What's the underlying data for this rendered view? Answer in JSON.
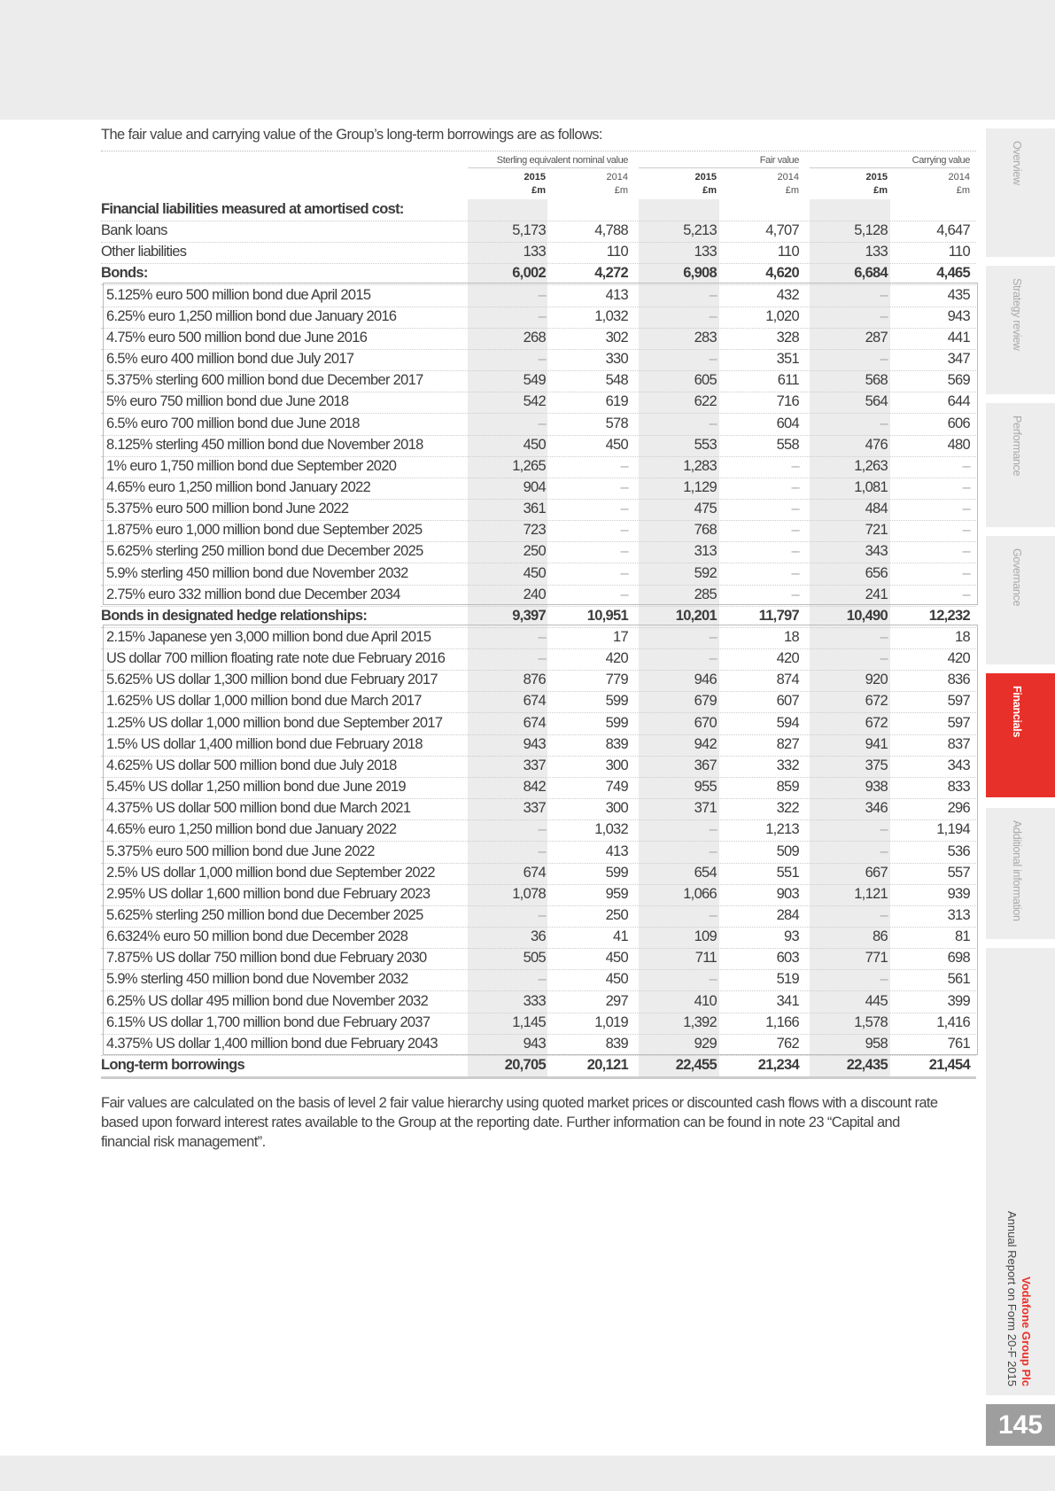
{
  "intro": "The fair value and carrying value of the Group’s long-term borrowings are as follows:",
  "header": {
    "groups": [
      "Sterling equivalent nominal value",
      "Fair value",
      "Carrying value"
    ],
    "years": [
      "2015",
      "2014",
      "2015",
      "2014",
      "2015",
      "2014"
    ],
    "units": [
      "£m",
      "£m",
      "£m",
      "£m",
      "£m",
      "£m"
    ]
  },
  "rows": [
    {
      "label": "Financial liabilities measured at amortised cost:",
      "type": "hd",
      "values": [
        "",
        "",
        "",
        "",
        "",
        ""
      ]
    },
    {
      "label": "Bank loans",
      "values": [
        "5,173",
        "4,788",
        "5,213",
        "4,707",
        "5,128",
        "4,647"
      ]
    },
    {
      "label": "Other liabilities",
      "values": [
        "133",
        "110",
        "133",
        "110",
        "133",
        "110"
      ]
    },
    {
      "label": "Bonds:",
      "type": "hd",
      "values": [
        "6,002",
        "4,272",
        "6,908",
        "4,620",
        "6,684",
        "4,465"
      ]
    },
    {
      "label": "5.125% euro 500 million bond due April 2015",
      "type": "ind",
      "values": [
        "–",
        "413",
        "–",
        "432",
        "–",
        "435"
      ]
    },
    {
      "label": "6.25% euro 1,250 million bond due January 2016",
      "type": "ind",
      "values": [
        "–",
        "1,032",
        "–",
        "1,020",
        "–",
        "943"
      ]
    },
    {
      "label": "4.75% euro 500 million bond due June 2016",
      "type": "ind",
      "values": [
        "268",
        "302",
        "283",
        "328",
        "287",
        "441"
      ]
    },
    {
      "label": "6.5% euro 400 million bond due July 2017",
      "type": "ind",
      "values": [
        "–",
        "330",
        "–",
        "351",
        "–",
        "347"
      ]
    },
    {
      "label": "5.375% sterling 600 million bond due December 2017",
      "type": "ind",
      "values": [
        "549",
        "548",
        "605",
        "611",
        "568",
        "569"
      ]
    },
    {
      "label": "5% euro 750 million bond due June 2018",
      "type": "ind",
      "values": [
        "542",
        "619",
        "622",
        "716",
        "564",
        "644"
      ]
    },
    {
      "label": "6.5% euro 700 million bond due June 2018",
      "type": "ind",
      "values": [
        "–",
        "578",
        "–",
        "604",
        "–",
        "606"
      ]
    },
    {
      "label": "8.125% sterling 450 million bond due November 2018",
      "type": "ind",
      "values": [
        "450",
        "450",
        "553",
        "558",
        "476",
        "480"
      ]
    },
    {
      "label": "1% euro 1,750 million bond due September 2020",
      "type": "ind",
      "values": [
        "1,265",
        "–",
        "1,283",
        "–",
        "1,263",
        "–"
      ]
    },
    {
      "label": "4.65% euro 1,250 million bond January 2022",
      "type": "ind",
      "values": [
        "904",
        "–",
        "1,129",
        "–",
        "1,081",
        "–"
      ]
    },
    {
      "label": "5.375% euro 500 million bond June 2022",
      "type": "ind",
      "values": [
        "361",
        "–",
        "475",
        "–",
        "484",
        "–"
      ]
    },
    {
      "label": "1.875% euro 1,000 million bond due September 2025",
      "type": "ind",
      "values": [
        "723",
        "–",
        "768",
        "–",
        "721",
        "–"
      ]
    },
    {
      "label": "5.625% sterling 250 million bond due December 2025",
      "type": "ind",
      "values": [
        "250",
        "–",
        "313",
        "–",
        "343",
        "–"
      ]
    },
    {
      "label": "5.9% sterling 450 million bond due November 2032",
      "type": "ind",
      "values": [
        "450",
        "–",
        "592",
        "–",
        "656",
        "–"
      ]
    },
    {
      "label": "2.75% euro 332 million bond due December 2034",
      "type": "ind",
      "values": [
        "240",
        "–",
        "285",
        "–",
        "241",
        "–"
      ]
    },
    {
      "label": "Bonds in designated hedge relationships:",
      "type": "hd",
      "values": [
        "9,397",
        "10,951",
        "10,201",
        "11,797",
        "10,490",
        "12,232"
      ]
    },
    {
      "label": "2.15% Japanese yen 3,000 million bond due April 2015",
      "type": "ind",
      "values": [
        "–",
        "17",
        "–",
        "18",
        "–",
        "18"
      ]
    },
    {
      "label": "US dollar 700 million floating rate note due February 2016",
      "type": "ind",
      "values": [
        "–",
        "420",
        "–",
        "420",
        "–",
        "420"
      ]
    },
    {
      "label": "5.625% US dollar 1,300 million bond due February 2017",
      "type": "ind",
      "values": [
        "876",
        "779",
        "946",
        "874",
        "920",
        "836"
      ]
    },
    {
      "label": "1.625% US dollar 1,000 million bond due March 2017",
      "type": "ind",
      "values": [
        "674",
        "599",
        "679",
        "607",
        "672",
        "597"
      ]
    },
    {
      "label": "1.25% US dollar 1,000 million bond due September 2017",
      "type": "ind",
      "values": [
        "674",
        "599",
        "670",
        "594",
        "672",
        "597"
      ]
    },
    {
      "label": "1.5% US dollar 1,400 million bond due February 2018",
      "type": "ind",
      "values": [
        "943",
        "839",
        "942",
        "827",
        "941",
        "837"
      ]
    },
    {
      "label": "4.625% US dollar 500 million bond due July 2018",
      "type": "ind",
      "values": [
        "337",
        "300",
        "367",
        "332",
        "375",
        "343"
      ]
    },
    {
      "label": "5.45% US dollar 1,250 million bond due June 2019",
      "type": "ind",
      "values": [
        "842",
        "749",
        "955",
        "859",
        "938",
        "833"
      ]
    },
    {
      "label": "4.375% US dollar 500 million bond due March 2021",
      "type": "ind",
      "values": [
        "337",
        "300",
        "371",
        "322",
        "346",
        "296"
      ]
    },
    {
      "label": "4.65% euro 1,250 million bond due January 2022",
      "type": "ind",
      "values": [
        "–",
        "1,032",
        "–",
        "1,213",
        "–",
        "1,194"
      ]
    },
    {
      "label": "5.375% euro 500 million bond due June 2022",
      "type": "ind",
      "values": [
        "–",
        "413",
        "–",
        "509",
        "–",
        "536"
      ]
    },
    {
      "label": "2.5% US dollar 1,000 million bond due September 2022",
      "type": "ind",
      "values": [
        "674",
        "599",
        "654",
        "551",
        "667",
        "557"
      ]
    },
    {
      "label": "2.95% US dollar 1,600 million bond due February 2023",
      "type": "ind",
      "values": [
        "1,078",
        "959",
        "1,066",
        "903",
        "1,121",
        "939"
      ]
    },
    {
      "label": "5.625% sterling 250 million bond due December 2025",
      "type": "ind",
      "values": [
        "–",
        "250",
        "–",
        "284",
        "–",
        "313"
      ]
    },
    {
      "label": "6.6324% euro 50 million bond due December 2028",
      "type": "ind",
      "values": [
        "36",
        "41",
        "109",
        "93",
        "86",
        "81"
      ]
    },
    {
      "label": "7.875% US dollar 750 million bond due February 2030",
      "type": "ind",
      "values": [
        "505",
        "450",
        "711",
        "603",
        "771",
        "698"
      ]
    },
    {
      "label": "5.9% sterling 450 million bond due November 2032",
      "type": "ind",
      "values": [
        "–",
        "450",
        "–",
        "519",
        "–",
        "561"
      ]
    },
    {
      "label": "6.25% US dollar 495 million bond due November 2032",
      "type": "ind",
      "values": [
        "333",
        "297",
        "410",
        "341",
        "445",
        "399"
      ]
    },
    {
      "label": "6.15% US dollar 1,700 million bond due February 2037",
      "type": "ind",
      "values": [
        "1,145",
        "1,019",
        "1,392",
        "1,166",
        "1,578",
        "1,416"
      ]
    },
    {
      "label": "4.375% US dollar 1,400 million bond due February 2043",
      "type": "ind",
      "values": [
        "943",
        "839",
        "929",
        "762",
        "958",
        "761"
      ]
    },
    {
      "label": "Long-term borrowings",
      "type": "hd total",
      "values": [
        "20,705",
        "20,121",
        "22,455",
        "21,234",
        "22,435",
        "21,454"
      ]
    }
  ],
  "footnote": "Fair values are calculated on the basis of level 2 fair value hierarchy using quoted market prices or discounted cash flows with a discount rate based upon forward interest rates available to the Group at the reporting date. Further information can be found in note 23 “Capital and financial risk management”.",
  "side_tabs": [
    {
      "label": "Overview",
      "active": false
    },
    {
      "label": "Strategy review",
      "active": false
    },
    {
      "label": "Performance",
      "active": false
    },
    {
      "label": "Governance",
      "active": false
    },
    {
      "label": "Financials",
      "active": true
    },
    {
      "label": "Additional information",
      "active": false
    }
  ],
  "brand": {
    "company": "Vodafone Group Plc",
    "report": "Annual Report on Form 20-F 2015"
  },
  "page_number": "145",
  "colors": {
    "accent": "#e8302a",
    "shade": "#ececec"
  }
}
